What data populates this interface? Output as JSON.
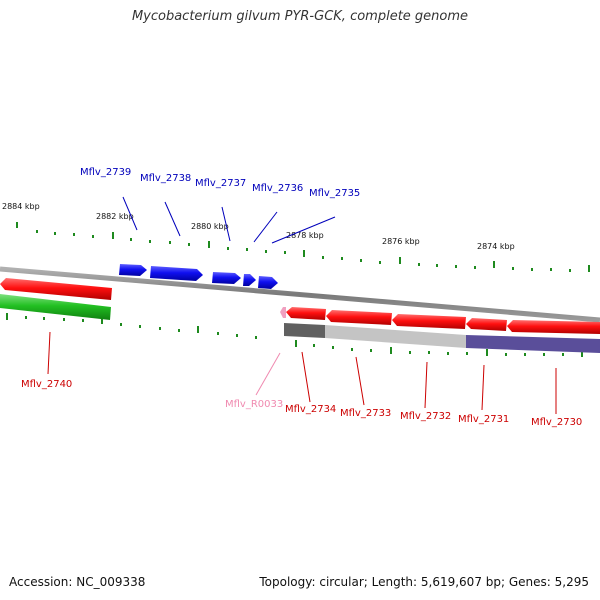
{
  "title": "Mycobacterium gilvum PYR-GCK, complete genome",
  "footer": {
    "accession": "Accession: NC_009338",
    "summary": "Topology: circular; Length: 5,619,607 bp; Genes: 5,295"
  },
  "colors": {
    "backbone": "#8a8a8a",
    "tick": "#1e8a1e",
    "forward_gene": "#1010f0",
    "reverse_gene": "#f01010",
    "reverse_gene_label": "#cc0000",
    "forward_gene_label": "#0000bb",
    "rrna_gene": "#f0a0c0",
    "rrna_label": "#f08ab0",
    "neighbor_gene": "#20c020",
    "cog_dark": "#606060",
    "cog_light": "#c0c0c0",
    "cog_purple": "#5a4e9a"
  },
  "scale": {
    "unit": "kbp",
    "labels": [
      "2884 kbp",
      "2882 kbp",
      "2880 kbp",
      "2878 kbp",
      "2876 kbp",
      "2874 kbp"
    ]
  },
  "genes": {
    "forward": [
      "Mflv_2739",
      "Mflv_2738",
      "Mflv_2737",
      "Mflv_2736",
      "Mflv_2735"
    ],
    "reverse": [
      "Mflv_2740",
      "Mflv_R0033",
      "Mflv_2734",
      "Mflv_2733",
      "Mflv_2732",
      "Mflv_2731",
      "Mflv_2730"
    ]
  }
}
